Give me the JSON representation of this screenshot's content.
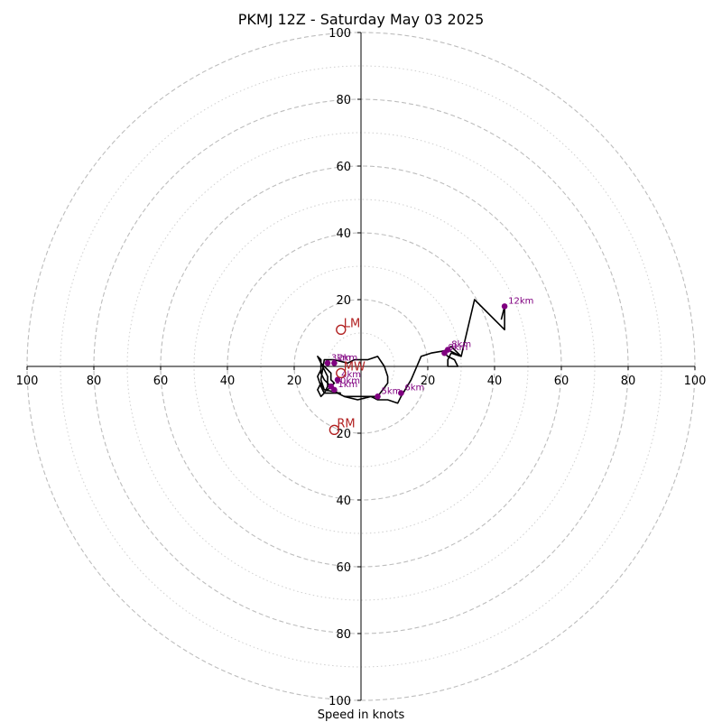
{
  "chart_data": {
    "type": "hodograph",
    "title": "PKMJ 12Z - Saturday May 03 2025",
    "xlabel": "Speed in knots",
    "units": "knots",
    "xlim": [
      -100,
      100
    ],
    "ylim": [
      -100,
      100
    ],
    "major_rings": [
      20,
      40,
      60,
      80,
      100
    ],
    "minor_rings": [
      10,
      30,
      50,
      70,
      90
    ],
    "x_tick_labels": [
      "100",
      "80",
      "60",
      "40",
      "20",
      "20",
      "40",
      "60",
      "80",
      "100"
    ],
    "y_tick_labels": [
      "100",
      "80",
      "60",
      "40",
      "20",
      "20",
      "40",
      "60",
      "80",
      "100"
    ],
    "x_tick_values": [
      -100,
      -80,
      -60,
      -40,
      -20,
      20,
      40,
      60,
      80,
      100
    ],
    "y_tick_values": [
      100,
      80,
      60,
      40,
      20,
      -20,
      -40,
      -60,
      -80,
      -100
    ],
    "colors": {
      "trace": "#000000",
      "height_marker": "#800080",
      "storm_motion": "#b22222",
      "grid_major": "#bdbdbd",
      "grid_minor": "#cfcfcf"
    },
    "trace": [
      [
        -6,
        -8
      ],
      [
        -9,
        -6
      ],
      [
        -10,
        -4
      ],
      [
        -11,
        -2
      ],
      [
        -10,
        0
      ],
      [
        -8,
        1
      ],
      [
        -6,
        2
      ],
      [
        -4,
        1
      ],
      [
        -2,
        1
      ],
      [
        0,
        1
      ],
      [
        2,
        2
      ],
      [
        4,
        1
      ],
      [
        6,
        0
      ],
      [
        7,
        -2
      ],
      [
        8,
        -4
      ],
      [
        8,
        -8
      ],
      [
        5,
        -10
      ],
      [
        3,
        -10
      ],
      [
        1,
        -9
      ],
      [
        -1,
        -8
      ],
      [
        -2,
        -8
      ],
      [
        -4,
        -8
      ],
      [
        -6,
        -8
      ],
      [
        -7,
        -7
      ],
      [
        -8,
        -6
      ],
      [
        -9,
        -4
      ],
      [
        -10,
        -3
      ],
      [
        -9,
        -2
      ],
      [
        -8,
        -1
      ],
      [
        -8,
        0
      ],
      [
        -9,
        1
      ],
      [
        -10,
        2
      ],
      [
        -11,
        3
      ],
      [
        -12,
        4
      ],
      [
        -12,
        2
      ],
      [
        -13,
        0
      ],
      [
        -12,
        -2
      ],
      [
        -11,
        -4
      ],
      [
        -10,
        -6
      ],
      [
        -11,
        -7
      ],
      [
        -12,
        -8
      ],
      [
        -10,
        -8
      ],
      [
        -11,
        -7
      ],
      [
        -12,
        -8
      ],
      [
        -10,
        -9
      ],
      [
        -9,
        -8
      ],
      [
        -8,
        -8
      ],
      [
        -7,
        -7
      ],
      [
        -8,
        -6
      ],
      [
        -10,
        -5
      ],
      [
        -9,
        -3
      ],
      [
        -8,
        -1
      ],
      [
        -7,
        0
      ],
      [
        -6,
        1
      ],
      [
        -7,
        2
      ],
      [
        -9,
        2
      ],
      [
        -11,
        2
      ],
      [
        -12,
        2
      ],
      [
        -13,
        1
      ],
      [
        -12,
        -1
      ],
      [
        -11,
        -2
      ],
      [
        -12,
        -3
      ],
      [
        -13,
        -4
      ],
      [
        -12,
        -6
      ],
      [
        -11,
        -8
      ],
      [
        -12,
        -10
      ],
      [
        -13,
        -9
      ],
      [
        -11,
        -8
      ],
      [
        -9,
        -8
      ],
      [
        -8,
        -7
      ],
      [
        -5,
        -9
      ],
      [
        -2,
        -9
      ],
      [
        1,
        -9
      ],
      [
        3,
        -9
      ],
      [
        5,
        -10
      ],
      [
        8,
        -10
      ],
      [
        11,
        -11
      ],
      [
        12,
        -9
      ],
      [
        15,
        -4
      ],
      [
        18,
        2
      ],
      [
        21,
        3
      ],
      [
        24,
        4
      ],
      [
        26,
        5
      ],
      [
        27,
        4
      ],
      [
        28,
        3
      ],
      [
        29,
        2
      ],
      [
        30,
        4
      ],
      [
        33,
        8
      ],
      [
        34,
        13
      ],
      [
        34,
        20
      ],
      [
        40,
        17
      ],
      [
        43,
        18
      ],
      [
        42,
        12
      ],
      [
        39,
        10
      ],
      [
        34,
        14
      ]
    ],
    "trace_path": [
      [
        -6,
        -8
      ],
      [
        -11,
        -7
      ],
      [
        -12,
        -4
      ],
      [
        -11,
        2
      ],
      [
        -8,
        2
      ],
      [
        -4,
        1
      ],
      [
        -2,
        2
      ],
      [
        0,
        2
      ],
      [
        2,
        2
      ],
      [
        5,
        3
      ],
      [
        7,
        0
      ],
      [
        8,
        -3
      ],
      [
        8,
        -5
      ],
      [
        5,
        -9
      ],
      [
        3,
        -9
      ],
      [
        -1,
        -10
      ],
      [
        -5,
        -9
      ],
      [
        -7,
        -8
      ],
      [
        -9,
        -6
      ],
      [
        -11,
        -4
      ],
      [
        -12,
        -2
      ],
      [
        -12,
        0
      ],
      [
        -12,
        2
      ],
      [
        -13,
        3
      ],
      [
        -12,
        1
      ],
      [
        -11,
        -1
      ],
      [
        -10,
        -3
      ],
      [
        -10,
        -6
      ],
      [
        -11,
        -8
      ],
      [
        -12,
        -9
      ],
      [
        -13,
        -7
      ],
      [
        -12,
        -5
      ],
      [
        -11,
        -7
      ],
      [
        -10,
        -7
      ],
      [
        -8,
        -5
      ],
      [
        -9,
        -4
      ],
      [
        -9,
        -2
      ],
      [
        -10,
        -1
      ],
      [
        -11,
        0
      ],
      [
        -12,
        1
      ],
      [
        -12,
        -1
      ],
      [
        -13,
        -3
      ],
      [
        -12,
        -6
      ],
      [
        -11,
        -8
      ],
      [
        -9,
        -8
      ],
      [
        -7,
        -8
      ],
      [
        -5,
        -9
      ]
    ],
    "height_markers": [
      {
        "label": "1km",
        "x": -8,
        "y": -7
      },
      {
        "label": "2km",
        "x": -8,
        "y": 1
      },
      {
        "label": "3km",
        "x": -10,
        "y": 1
      },
      {
        "label": "4km",
        "x": -7,
        "y": -4
      },
      {
        "label": "5km",
        "x": 5,
        "y": -9
      },
      {
        "label": "6km",
        "x": 12,
        "y": -8
      },
      {
        "label": "8km",
        "x": 26,
        "y": 5
      },
      {
        "label": "9km",
        "x": 25,
        "y": 4
      },
      {
        "label": "10km",
        "x": -9,
        "y": -6
      },
      {
        "label": "12km",
        "x": 43,
        "y": 18
      }
    ],
    "storm_motion": [
      {
        "label": "LM",
        "x": -6,
        "y": 11
      },
      {
        "label": "RM",
        "x": -8,
        "y": -19
      },
      {
        "label": "MW",
        "x": -6,
        "y": -2
      }
    ]
  }
}
